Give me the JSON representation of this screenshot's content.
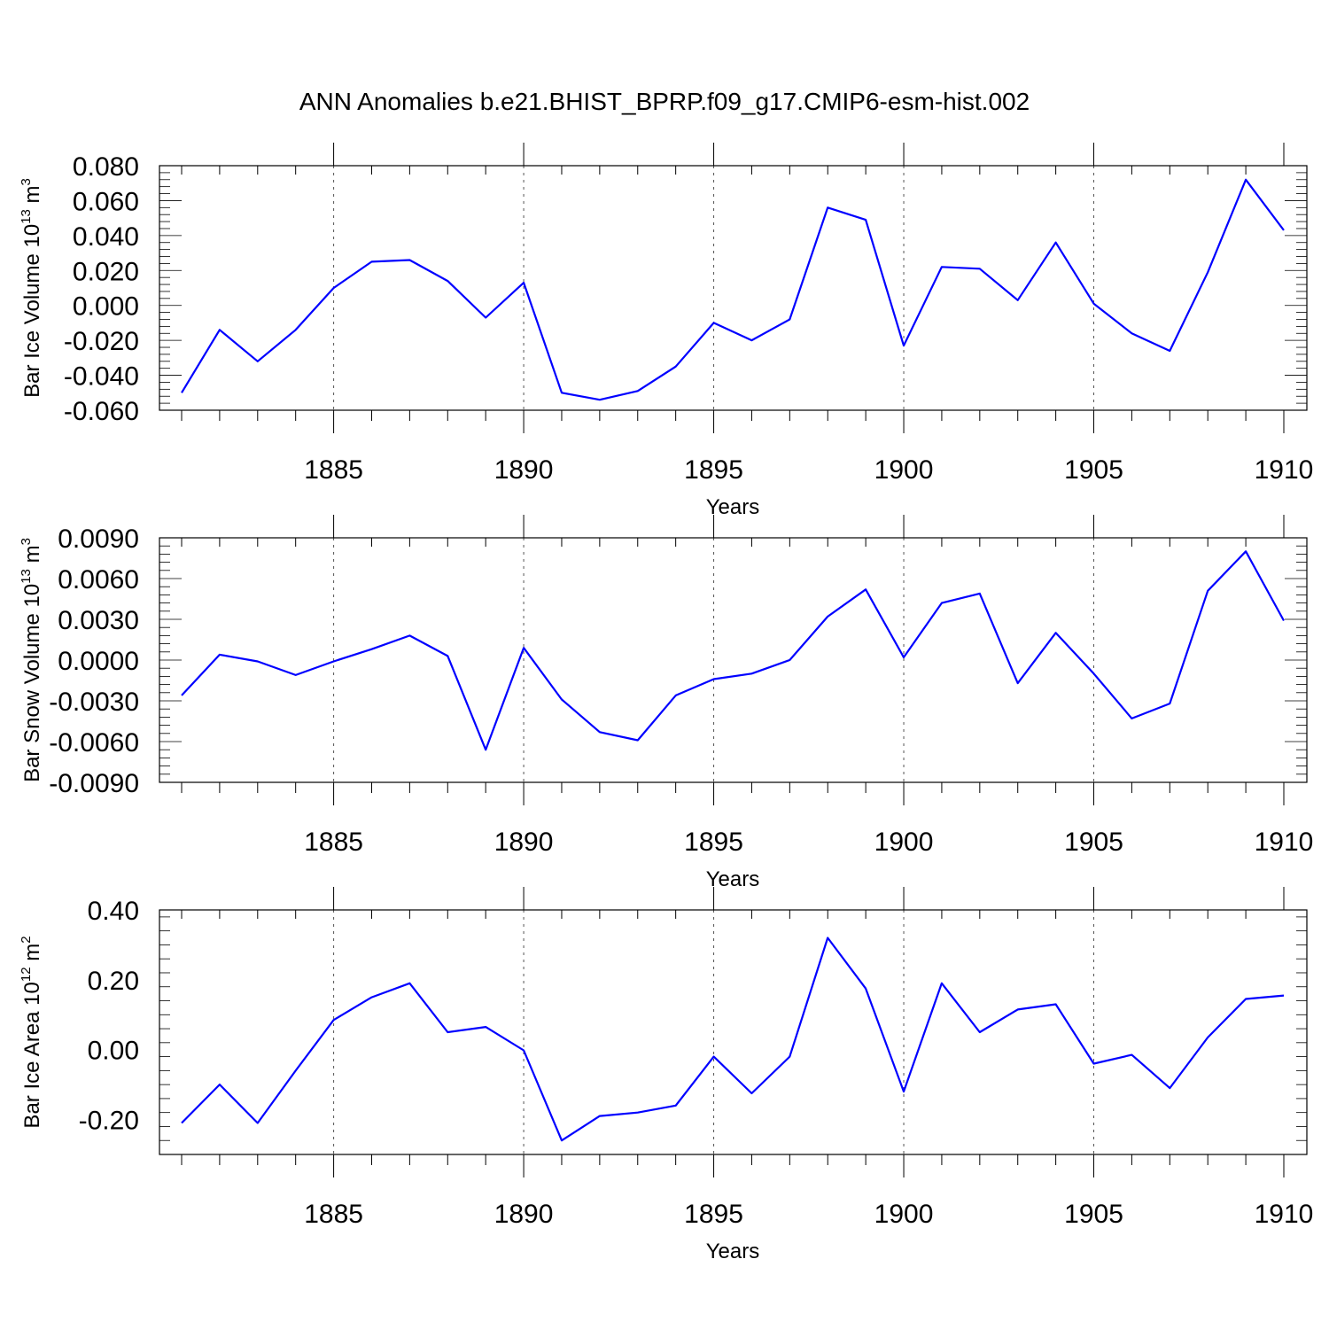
{
  "title": "ANN Anomalies b.e21.BHIST_BPRP.f09_g17.CMIP6-esm-hist.002",
  "colors": {
    "line": "#0000ff",
    "axes": "#000000",
    "grid": "#555555"
  },
  "chart_data": [
    {
      "type": "line",
      "ylabel": "Bar Ice Volume 10",
      "ylabel_exp": "13",
      "ylabel_unit": " m",
      "ylabel_unit_exp": "3",
      "xlabel": "Years",
      "xlim": [
        1881,
        1910
      ],
      "ylim": [
        -0.06,
        0.08
      ],
      "yticks": [
        -0.06,
        -0.04,
        -0.02,
        0.0,
        0.02,
        0.04,
        0.06,
        0.08
      ],
      "ytick_labels": [
        "-0.060",
        "-0.040",
        "-0.020",
        "0.000",
        "0.020",
        "0.040",
        "0.060",
        "0.080"
      ],
      "xticks": [
        1885,
        1890,
        1895,
        1900,
        1905,
        1910
      ],
      "xtick_labels": [
        "1885",
        "1890",
        "1895",
        "1900",
        "1905",
        "1910"
      ],
      "grid_x": true,
      "series": [
        {
          "x": [
            1881,
            1882,
            1883,
            1884,
            1885,
            1886,
            1887,
            1888,
            1889,
            1890,
            1891,
            1892,
            1893,
            1894,
            1895,
            1896,
            1897,
            1898,
            1899,
            1900,
            1901,
            1902,
            1903,
            1904,
            1905,
            1906,
            1907,
            1908,
            1909,
            1910
          ],
          "values": [
            -0.05,
            -0.014,
            -0.032,
            -0.014,
            0.01,
            0.025,
            0.026,
            0.014,
            -0.007,
            0.013,
            -0.05,
            -0.054,
            -0.049,
            -0.035,
            -0.01,
            -0.02,
            -0.008,
            0.056,
            0.049,
            -0.023,
            0.022,
            0.021,
            0.003,
            0.036,
            0.001,
            -0.016,
            -0.026,
            0.019,
            0.072,
            0.043
          ]
        }
      ]
    },
    {
      "type": "line",
      "ylabel": "Bar Snow Volume 10",
      "ylabel_exp": "13",
      "ylabel_unit": " m",
      "ylabel_unit_exp": "3",
      "xlabel": "Years",
      "xlim": [
        1881,
        1910
      ],
      "ylim": [
        -0.009,
        0.009
      ],
      "yticks": [
        -0.009,
        -0.006,
        -0.003,
        0.0,
        0.003,
        0.006,
        0.009
      ],
      "ytick_labels": [
        "-0.0090",
        "-0.0060",
        "-0.0030",
        "0.0000",
        "0.0030",
        "0.0060",
        "0.0090"
      ],
      "xticks": [
        1885,
        1890,
        1895,
        1900,
        1905,
        1910
      ],
      "xtick_labels": [
        "1885",
        "1890",
        "1895",
        "1900",
        "1905",
        "1910"
      ],
      "grid_x": true,
      "series": [
        {
          "x": [
            1881,
            1882,
            1883,
            1884,
            1885,
            1886,
            1887,
            1888,
            1889,
            1890,
            1891,
            1892,
            1893,
            1894,
            1895,
            1896,
            1897,
            1898,
            1899,
            1900,
            1901,
            1902,
            1903,
            1904,
            1905,
            1906,
            1907,
            1908,
            1909,
            1910
          ],
          "values": [
            -0.0026,
            0.0004,
            -0.0001,
            -0.0011,
            -0.0001,
            0.0008,
            0.0018,
            0.0003,
            -0.0066,
            0.0009,
            -0.0029,
            -0.0053,
            -0.0059,
            -0.0026,
            -0.0014,
            -0.001,
            0.0,
            0.0032,
            0.0052,
            0.0002,
            0.0042,
            0.0049,
            -0.0017,
            0.002,
            -0.001,
            -0.0043,
            -0.0032,
            0.0051,
            0.008,
            0.0029
          ]
        }
      ]
    },
    {
      "type": "line",
      "ylabel": "Bar Ice Area 10",
      "ylabel_exp": "12",
      "ylabel_unit": " m",
      "ylabel_unit_exp": "2",
      "xlabel": "Years",
      "xlim": [
        1881,
        1910
      ],
      "ylim": [
        -0.3,
        0.4
      ],
      "yticks": [
        -0.2,
        0.0,
        0.2,
        0.4
      ],
      "ytick_labels": [
        "-0.20",
        "0.00",
        "0.20",
        "0.40"
      ],
      "xticks": [
        1885,
        1890,
        1895,
        1900,
        1905,
        1910
      ],
      "xtick_labels": [
        "1885",
        "1890",
        "1895",
        "1900",
        "1905",
        "1910"
      ],
      "grid_x": true,
      "series": [
        {
          "x": [
            1881,
            1882,
            1883,
            1884,
            1885,
            1886,
            1887,
            1888,
            1889,
            1890,
            1891,
            1892,
            1893,
            1894,
            1895,
            1896,
            1897,
            1898,
            1899,
            1900,
            1901,
            1902,
            1903,
            1904,
            1905,
            1906,
            1907,
            1908,
            1909,
            1910
          ],
          "values": [
            -0.21,
            -0.1,
            -0.21,
            -0.06,
            0.085,
            0.15,
            0.19,
            0.05,
            0.065,
            -0.002,
            -0.26,
            -0.19,
            -0.18,
            -0.16,
            -0.02,
            -0.125,
            -0.02,
            0.32,
            0.175,
            -0.12,
            0.19,
            0.05,
            0.115,
            0.13,
            -0.04,
            -0.015,
            -0.11,
            0.035,
            0.145,
            0.155
          ]
        }
      ]
    }
  ]
}
